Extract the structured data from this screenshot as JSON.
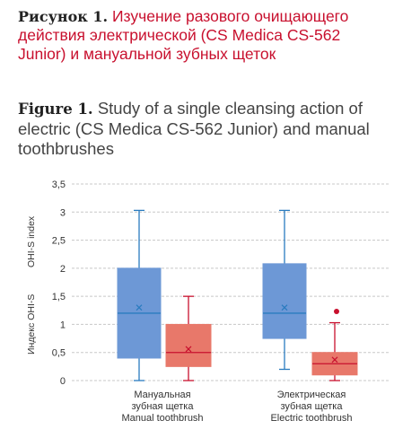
{
  "caption": {
    "ru_lead": "Рисунок 1.",
    "ru_text": " Изучение разового очищающего действия электрической (CS Medica CS-562 Junior) и мануальной зубных щеток",
    "en_lead": "Figure 1.",
    "en_text": " Study of a single cleansing action of electric (CS Medica CS-562 Junior) and manual toothbrushes"
  },
  "chart_data": {
    "type": "box",
    "ylabel_ru": "Индекс OHI-S",
    "ylabel_en": "OHI-S index",
    "ylim": [
      0,
      3.5
    ],
    "yticks": [
      "0",
      "0,5",
      "1",
      "1,5",
      "2",
      "2,5",
      "3",
      "3,5"
    ],
    "ytick_values": [
      0,
      0.5,
      1,
      1.5,
      2,
      2.5,
      3,
      3.5
    ],
    "grid": true,
    "groups": [
      {
        "label_lines": [
          "Мануальная",
          "зубная щетка",
          "Manual toothbrush"
        ],
        "boxes": [
          {
            "color": "#6d98d6",
            "line_color": "#2a7bbf",
            "min": 0,
            "q1": 0.4,
            "median": 1.2,
            "q3": 2.0,
            "max": 3.03,
            "mean": 1.3,
            "outliers": []
          },
          {
            "color": "#e8786a",
            "line_color": "#c8102e",
            "min": 0,
            "q1": 0.25,
            "median": 0.5,
            "q3": 1.0,
            "max": 1.5,
            "mean": 0.56,
            "outliers": []
          }
        ]
      },
      {
        "label_lines": [
          "Электрическая",
          "зубная щетка",
          "Electric toothbrush"
        ],
        "boxes": [
          {
            "color": "#6d98d6",
            "line_color": "#2a7bbf",
            "min": 0.2,
            "q1": 0.75,
            "median": 1.2,
            "q3": 2.08,
            "max": 3.03,
            "mean": 1.3,
            "outliers": []
          },
          {
            "color": "#e8786a",
            "line_color": "#c8102e",
            "min": 0.0,
            "q1": 0.1,
            "median": 0.3,
            "q3": 0.5,
            "max": 1.03,
            "mean": 0.37,
            "outliers": [
              1.23
            ]
          }
        ]
      }
    ]
  }
}
